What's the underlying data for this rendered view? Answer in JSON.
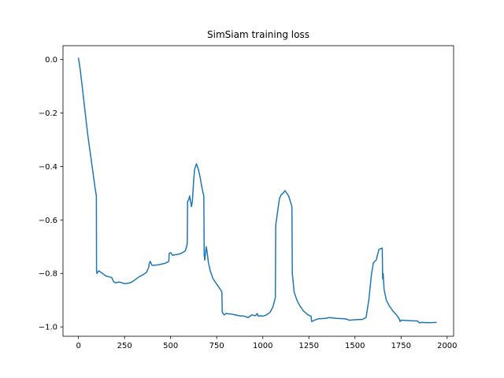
{
  "chart_data": {
    "type": "line",
    "title": "SimSiam training loss",
    "xlabel": "",
    "ylabel": "",
    "xlim": [
      -84,
      2035
    ],
    "ylim": [
      -1.035,
      0.052
    ],
    "grid": false,
    "x_ticks": [
      0,
      250,
      500,
      750,
      1000,
      1250,
      1500,
      1750,
      2000
    ],
    "x_tick_labels": [
      "0",
      "250",
      "500",
      "750",
      "1000",
      "1250",
      "1500",
      "1750",
      "2000"
    ],
    "y_ticks": [
      0.0,
      -0.2,
      -0.4,
      -0.6,
      -0.8,
      -1.0
    ],
    "y_tick_labels": [
      "0.0",
      "−0.2",
      "−0.4",
      "−0.6",
      "−0.8",
      "−1.0"
    ],
    "series": [
      {
        "color": "#1f77b4",
        "points": [
          [
            0,
            0.005
          ],
          [
            10,
            -0.04
          ],
          [
            20,
            -0.1
          ],
          [
            30,
            -0.16
          ],
          [
            40,
            -0.22
          ],
          [
            50,
            -0.28
          ],
          [
            60,
            -0.33
          ],
          [
            70,
            -0.38
          ],
          [
            80,
            -0.43
          ],
          [
            90,
            -0.48
          ],
          [
            97,
            -0.51
          ],
          [
            98,
            -0.79
          ],
          [
            100,
            -0.8
          ],
          [
            110,
            -0.79
          ],
          [
            130,
            -0.8
          ],
          [
            150,
            -0.81
          ],
          [
            180,
            -0.815
          ],
          [
            190,
            -0.83
          ],
          [
            200,
            -0.835
          ],
          [
            220,
            -0.832
          ],
          [
            250,
            -0.838
          ],
          [
            275,
            -0.836
          ],
          [
            290,
            -0.832
          ],
          [
            310,
            -0.822
          ],
          [
            330,
            -0.812
          ],
          [
            350,
            -0.805
          ],
          [
            370,
            -0.795
          ],
          [
            380,
            -0.778
          ],
          [
            385,
            -0.76
          ],
          [
            390,
            -0.755
          ],
          [
            395,
            -0.765
          ],
          [
            400,
            -0.77
          ],
          [
            430,
            -0.768
          ],
          [
            470,
            -0.762
          ],
          [
            490,
            -0.755
          ],
          [
            492,
            -0.725
          ],
          [
            500,
            -0.722
          ],
          [
            510,
            -0.732
          ],
          [
            525,
            -0.73
          ],
          [
            545,
            -0.728
          ],
          [
            565,
            -0.722
          ],
          [
            580,
            -0.715
          ],
          [
            590,
            -0.69
          ],
          [
            592,
            -0.53
          ],
          [
            598,
            -0.525
          ],
          [
            603,
            -0.51
          ],
          [
            608,
            -0.53
          ],
          [
            613,
            -0.55
          ],
          [
            618,
            -0.53
          ],
          [
            625,
            -0.45
          ],
          [
            630,
            -0.41
          ],
          [
            640,
            -0.39
          ],
          [
            650,
            -0.41
          ],
          [
            660,
            -0.44
          ],
          [
            670,
            -0.48
          ],
          [
            680,
            -0.51
          ],
          [
            682,
            -0.73
          ],
          [
            685,
            -0.75
          ],
          [
            690,
            -0.72
          ],
          [
            693,
            -0.7
          ],
          [
            698,
            -0.72
          ],
          [
            705,
            -0.76
          ],
          [
            715,
            -0.79
          ],
          [
            730,
            -0.82
          ],
          [
            750,
            -0.84
          ],
          [
            770,
            -0.86
          ],
          [
            778,
            -0.87
          ],
          [
            780,
            -0.945
          ],
          [
            790,
            -0.955
          ],
          [
            800,
            -0.95
          ],
          [
            830,
            -0.952
          ],
          [
            850,
            -0.955
          ],
          [
            870,
            -0.958
          ],
          [
            900,
            -0.96
          ],
          [
            920,
            -0.965
          ],
          [
            940,
            -0.955
          ],
          [
            960,
            -0.958
          ],
          [
            970,
            -0.95
          ],
          [
            975,
            -0.96
          ],
          [
            990,
            -0.958
          ],
          [
            1000,
            -0.96
          ],
          [
            1020,
            -0.955
          ],
          [
            1040,
            -0.945
          ],
          [
            1055,
            -0.925
          ],
          [
            1068,
            -0.89
          ],
          [
            1070,
            -0.62
          ],
          [
            1080,
            -0.57
          ],
          [
            1090,
            -0.52
          ],
          [
            1100,
            -0.505
          ],
          [
            1110,
            -0.5
          ],
          [
            1120,
            -0.49
          ],
          [
            1140,
            -0.51
          ],
          [
            1158,
            -0.55
          ],
          [
            1160,
            -0.8
          ],
          [
            1170,
            -0.87
          ],
          [
            1185,
            -0.9
          ],
          [
            1200,
            -0.92
          ],
          [
            1220,
            -0.94
          ],
          [
            1245,
            -0.955
          ],
          [
            1262,
            -0.96
          ],
          [
            1265,
            -0.98
          ],
          [
            1280,
            -0.975
          ],
          [
            1300,
            -0.97
          ],
          [
            1340,
            -0.968
          ],
          [
            1360,
            -0.965
          ],
          [
            1400,
            -0.968
          ],
          [
            1450,
            -0.97
          ],
          [
            1470,
            -0.975
          ],
          [
            1500,
            -0.973
          ],
          [
            1540,
            -0.972
          ],
          [
            1560,
            -0.965
          ],
          [
            1575,
            -0.9
          ],
          [
            1590,
            -0.8
          ],
          [
            1600,
            -0.76
          ],
          [
            1615,
            -0.75
          ],
          [
            1630,
            -0.71
          ],
          [
            1648,
            -0.705
          ],
          [
            1650,
            -0.82
          ],
          [
            1653,
            -0.8
          ],
          [
            1658,
            -0.86
          ],
          [
            1670,
            -0.9
          ],
          [
            1685,
            -0.92
          ],
          [
            1705,
            -0.94
          ],
          [
            1725,
            -0.955
          ],
          [
            1740,
            -0.97
          ],
          [
            1745,
            -0.98
          ],
          [
            1750,
            -0.975
          ],
          [
            1800,
            -0.977
          ],
          [
            1840,
            -0.978
          ],
          [
            1850,
            -0.985
          ],
          [
            1860,
            -0.983
          ],
          [
            1900,
            -0.984
          ],
          [
            1940,
            -0.983
          ]
        ]
      }
    ]
  }
}
